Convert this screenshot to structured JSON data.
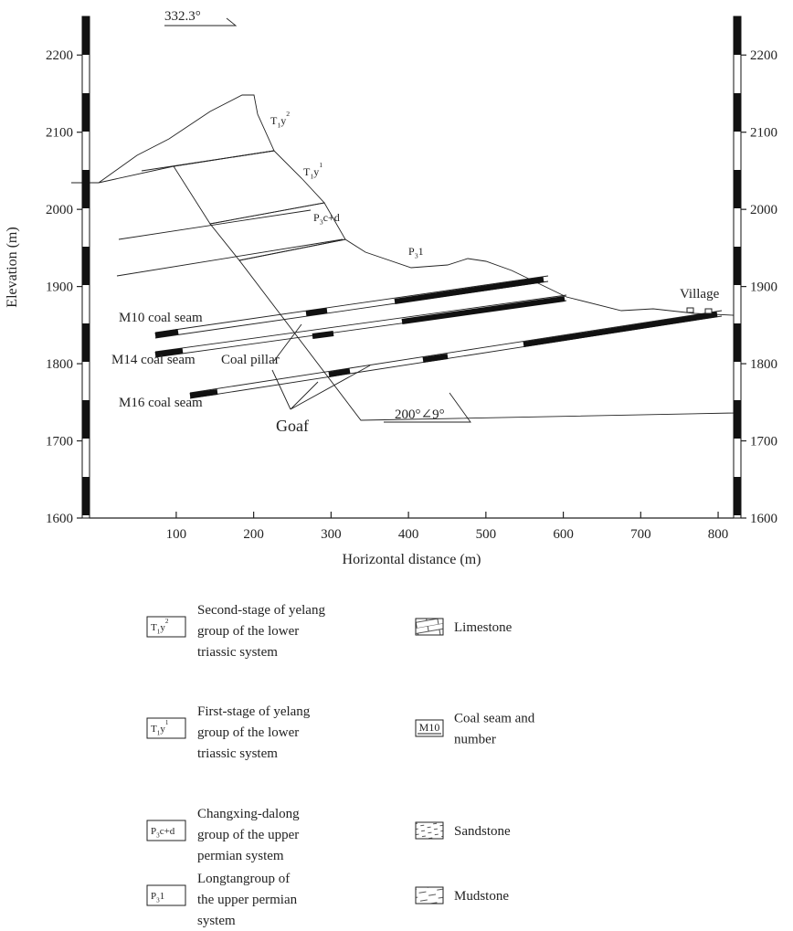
{
  "direction": "332.3°",
  "chart_data": {
    "type": "cross-section",
    "xlabel": "Horizontal distance (m)",
    "ylabel": "Elevation (m)",
    "xlim": [
      -12,
      820
    ],
    "ylim": [
      1600,
      2250
    ],
    "xticks": [
      100,
      200,
      300,
      400,
      500,
      600,
      700,
      800
    ],
    "yticks": [
      1600,
      1700,
      1800,
      1900,
      2000,
      2100,
      2200
    ]
  },
  "labels": {
    "village": "Village",
    "m10": "M10 coal seam",
    "m14": "M14 coal seam",
    "m16": "M16 coal seam",
    "pillar": "Coal pillar",
    "goaf": "Goaf",
    "dip": "200°∠9°"
  },
  "formations": [
    {
      "code": [
        "T",
        "1",
        "y",
        "2"
      ],
      "description": [
        "Second-stage of yelang",
        "group of the lower",
        "triassic system"
      ]
    },
    {
      "code": [
        "T",
        "1",
        "y",
        "1"
      ],
      "description": [
        "First-stage of yelang",
        "group of the lower",
        "triassic system"
      ]
    },
    {
      "code": [
        "P",
        "3",
        "c+d"
      ],
      "description": [
        "Changxing-dalong",
        "group of the upper",
        "permian system"
      ]
    },
    {
      "code": [
        "P",
        "3",
        "1"
      ],
      "description": [
        "Longtangroup of",
        "the upper permian",
        "system"
      ]
    }
  ],
  "lithology": [
    {
      "key": "",
      "label": [
        "Limestone"
      ]
    },
    {
      "key": "M10",
      "label": [
        "Coal seam and",
        "number"
      ]
    },
    {
      "key": "",
      "label": [
        "Sandstone"
      ]
    },
    {
      "key": "",
      "label": [
        "Mudstone"
      ]
    }
  ]
}
